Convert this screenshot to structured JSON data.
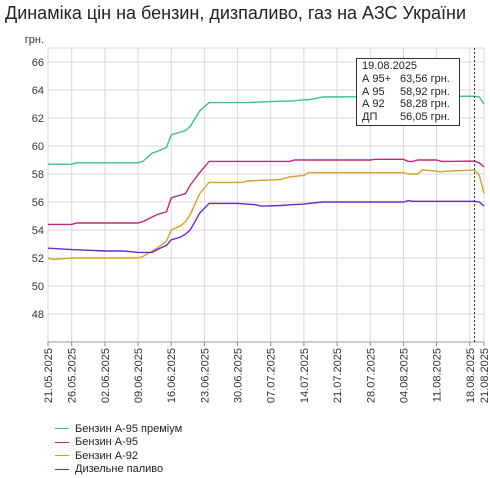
{
  "title": "Динаміка цін на бензин, дизпаливо, газ на АЗС України",
  "tooltip": {
    "date": "19.08.2025",
    "rows": [
      {
        "name": "А 95+",
        "value": "63,56 грн."
      },
      {
        "name": "А 95",
        "value": "58,92 грн."
      },
      {
        "name": "А 92",
        "value": "58,28 грн."
      },
      {
        "name": "ДП",
        "value": "56,05 грн."
      }
    ]
  },
  "chart_data": {
    "type": "line",
    "title": "Динаміка цін на бензин, дизпаливо, газ на АЗС України",
    "ylabel": "грн.",
    "xlabel": "",
    "ylim": [
      46,
      67
    ],
    "yticks": [
      48,
      50,
      52,
      54,
      56,
      58,
      60,
      62,
      64,
      66
    ],
    "ytick_labels": [
      "48",
      "50",
      "52",
      "54",
      "56",
      "58",
      "60",
      "62",
      "64",
      "66"
    ],
    "xtick_labels": [
      "21.05.2025",
      "26.05.2025",
      "02.06.2025",
      "09.06.2025",
      "16.06.2025",
      "23.06.2025",
      "30.06.2025",
      "07.07.2025",
      "14.07.2025",
      "21.07.2025",
      "28.07.2025",
      "04.08.2025",
      "11.08.2025",
      "18.08.2025",
      "21.08.2025"
    ],
    "xtick_dates": [
      "2025-05-21",
      "2025-05-26",
      "2025-06-02",
      "2025-06-09",
      "2025-06-16",
      "2025-06-23",
      "2025-06-30",
      "2025-07-07",
      "2025-07-14",
      "2025-07-21",
      "2025-07-28",
      "2025-08-04",
      "2025-08-11",
      "2025-08-18",
      "2025-08-21"
    ],
    "xlim": [
      "2025-05-21",
      "2025-08-21"
    ],
    "marker_date": "2025-08-19",
    "grid": true,
    "legend_position": "bottom-left",
    "series": [
      {
        "name": "Бензин А-95 преміум",
        "color": "#3dbe95",
        "x": [
          "2025-05-21",
          "2025-05-26",
          "2025-05-27",
          "2025-06-02",
          "2025-06-06",
          "2025-06-09",
          "2025-06-10",
          "2025-06-12",
          "2025-06-13",
          "2025-06-15",
          "2025-06-16",
          "2025-06-18",
          "2025-06-19",
          "2025-06-20",
          "2025-06-22",
          "2025-06-24",
          "2025-07-01",
          "2025-07-02",
          "2025-07-09",
          "2025-07-11",
          "2025-07-14",
          "2025-07-15",
          "2025-07-18",
          "2025-08-19",
          "2025-08-20",
          "2025-08-21"
        ],
        "y": [
          58.7,
          58.7,
          58.8,
          58.8,
          58.8,
          58.8,
          58.9,
          59.5,
          59.6,
          59.9,
          60.8,
          61.0,
          61.1,
          61.4,
          62.5,
          63.1,
          63.1,
          63.1,
          63.2,
          63.2,
          63.3,
          63.3,
          63.5,
          63.56,
          63.5,
          63.0
        ]
      },
      {
        "name": "Бензин А-95",
        "color": "#c8267a",
        "x": [
          "2025-05-21",
          "2025-05-26",
          "2025-05-27",
          "2025-06-02",
          "2025-06-09",
          "2025-06-10",
          "2025-06-13",
          "2025-06-15",
          "2025-06-16",
          "2025-06-18",
          "2025-06-19",
          "2025-06-20",
          "2025-06-22",
          "2025-06-24",
          "2025-06-25",
          "2025-07-11",
          "2025-07-12",
          "2025-07-28",
          "2025-07-29",
          "2025-08-04",
          "2025-08-05",
          "2025-08-06",
          "2025-08-07",
          "2025-08-11",
          "2025-08-12",
          "2025-08-13",
          "2025-08-19",
          "2025-08-20",
          "2025-08-21"
        ],
        "y": [
          54.4,
          54.4,
          54.5,
          54.5,
          54.5,
          54.6,
          55.1,
          55.3,
          56.3,
          56.5,
          56.6,
          57.2,
          58.1,
          58.9,
          58.9,
          58.9,
          59.0,
          59.0,
          59.05,
          59.05,
          58.9,
          58.9,
          59.0,
          59.0,
          58.9,
          58.9,
          58.92,
          58.8,
          58.5
        ]
      },
      {
        "name": "Бензин А-92",
        "color": "#d4a22c",
        "x": [
          "2025-05-21",
          "2025-05-22",
          "2025-05-26",
          "2025-06-02",
          "2025-06-09",
          "2025-06-10",
          "2025-06-12",
          "2025-06-13",
          "2025-06-15",
          "2025-06-16",
          "2025-06-18",
          "2025-06-19",
          "2025-06-20",
          "2025-06-22",
          "2025-06-24",
          "2025-06-25",
          "2025-07-01",
          "2025-07-02",
          "2025-07-09",
          "2025-07-11",
          "2025-07-14",
          "2025-07-15",
          "2025-08-04",
          "2025-08-05",
          "2025-08-07",
          "2025-08-08",
          "2025-08-11",
          "2025-08-12",
          "2025-08-13",
          "2025-08-19",
          "2025-08-20",
          "2025-08-21"
        ],
        "y": [
          52.0,
          51.9,
          52.0,
          52.0,
          52.0,
          52.1,
          52.5,
          52.7,
          53.2,
          54.0,
          54.3,
          54.6,
          55.1,
          56.6,
          57.4,
          57.4,
          57.4,
          57.5,
          57.6,
          57.8,
          57.9,
          58.1,
          58.1,
          58.0,
          58.0,
          58.3,
          58.2,
          58.15,
          58.2,
          58.28,
          57.9,
          56.6
        ]
      },
      {
        "name": "Дизельне паливо",
        "color": "#6a2ad6",
        "x": [
          "2025-05-21",
          "2025-05-26",
          "2025-06-02",
          "2025-06-06",
          "2025-06-09",
          "2025-06-12",
          "2025-06-13",
          "2025-06-15",
          "2025-06-16",
          "2025-06-18",
          "2025-06-19",
          "2025-06-20",
          "2025-06-22",
          "2025-06-24",
          "2025-06-30",
          "2025-07-04",
          "2025-07-05",
          "2025-07-09",
          "2025-07-11",
          "2025-07-14",
          "2025-07-15",
          "2025-07-18",
          "2025-08-04",
          "2025-08-05",
          "2025-08-06",
          "2025-08-19",
          "2025-08-20",
          "2025-08-21"
        ],
        "y": [
          52.7,
          52.6,
          52.5,
          52.5,
          52.4,
          52.4,
          52.6,
          52.9,
          53.3,
          53.5,
          53.7,
          54.0,
          55.2,
          55.9,
          55.9,
          55.8,
          55.7,
          55.75,
          55.8,
          55.85,
          55.9,
          56.0,
          56.0,
          56.1,
          56.05,
          56.05,
          56.0,
          55.7
        ]
      }
    ]
  }
}
